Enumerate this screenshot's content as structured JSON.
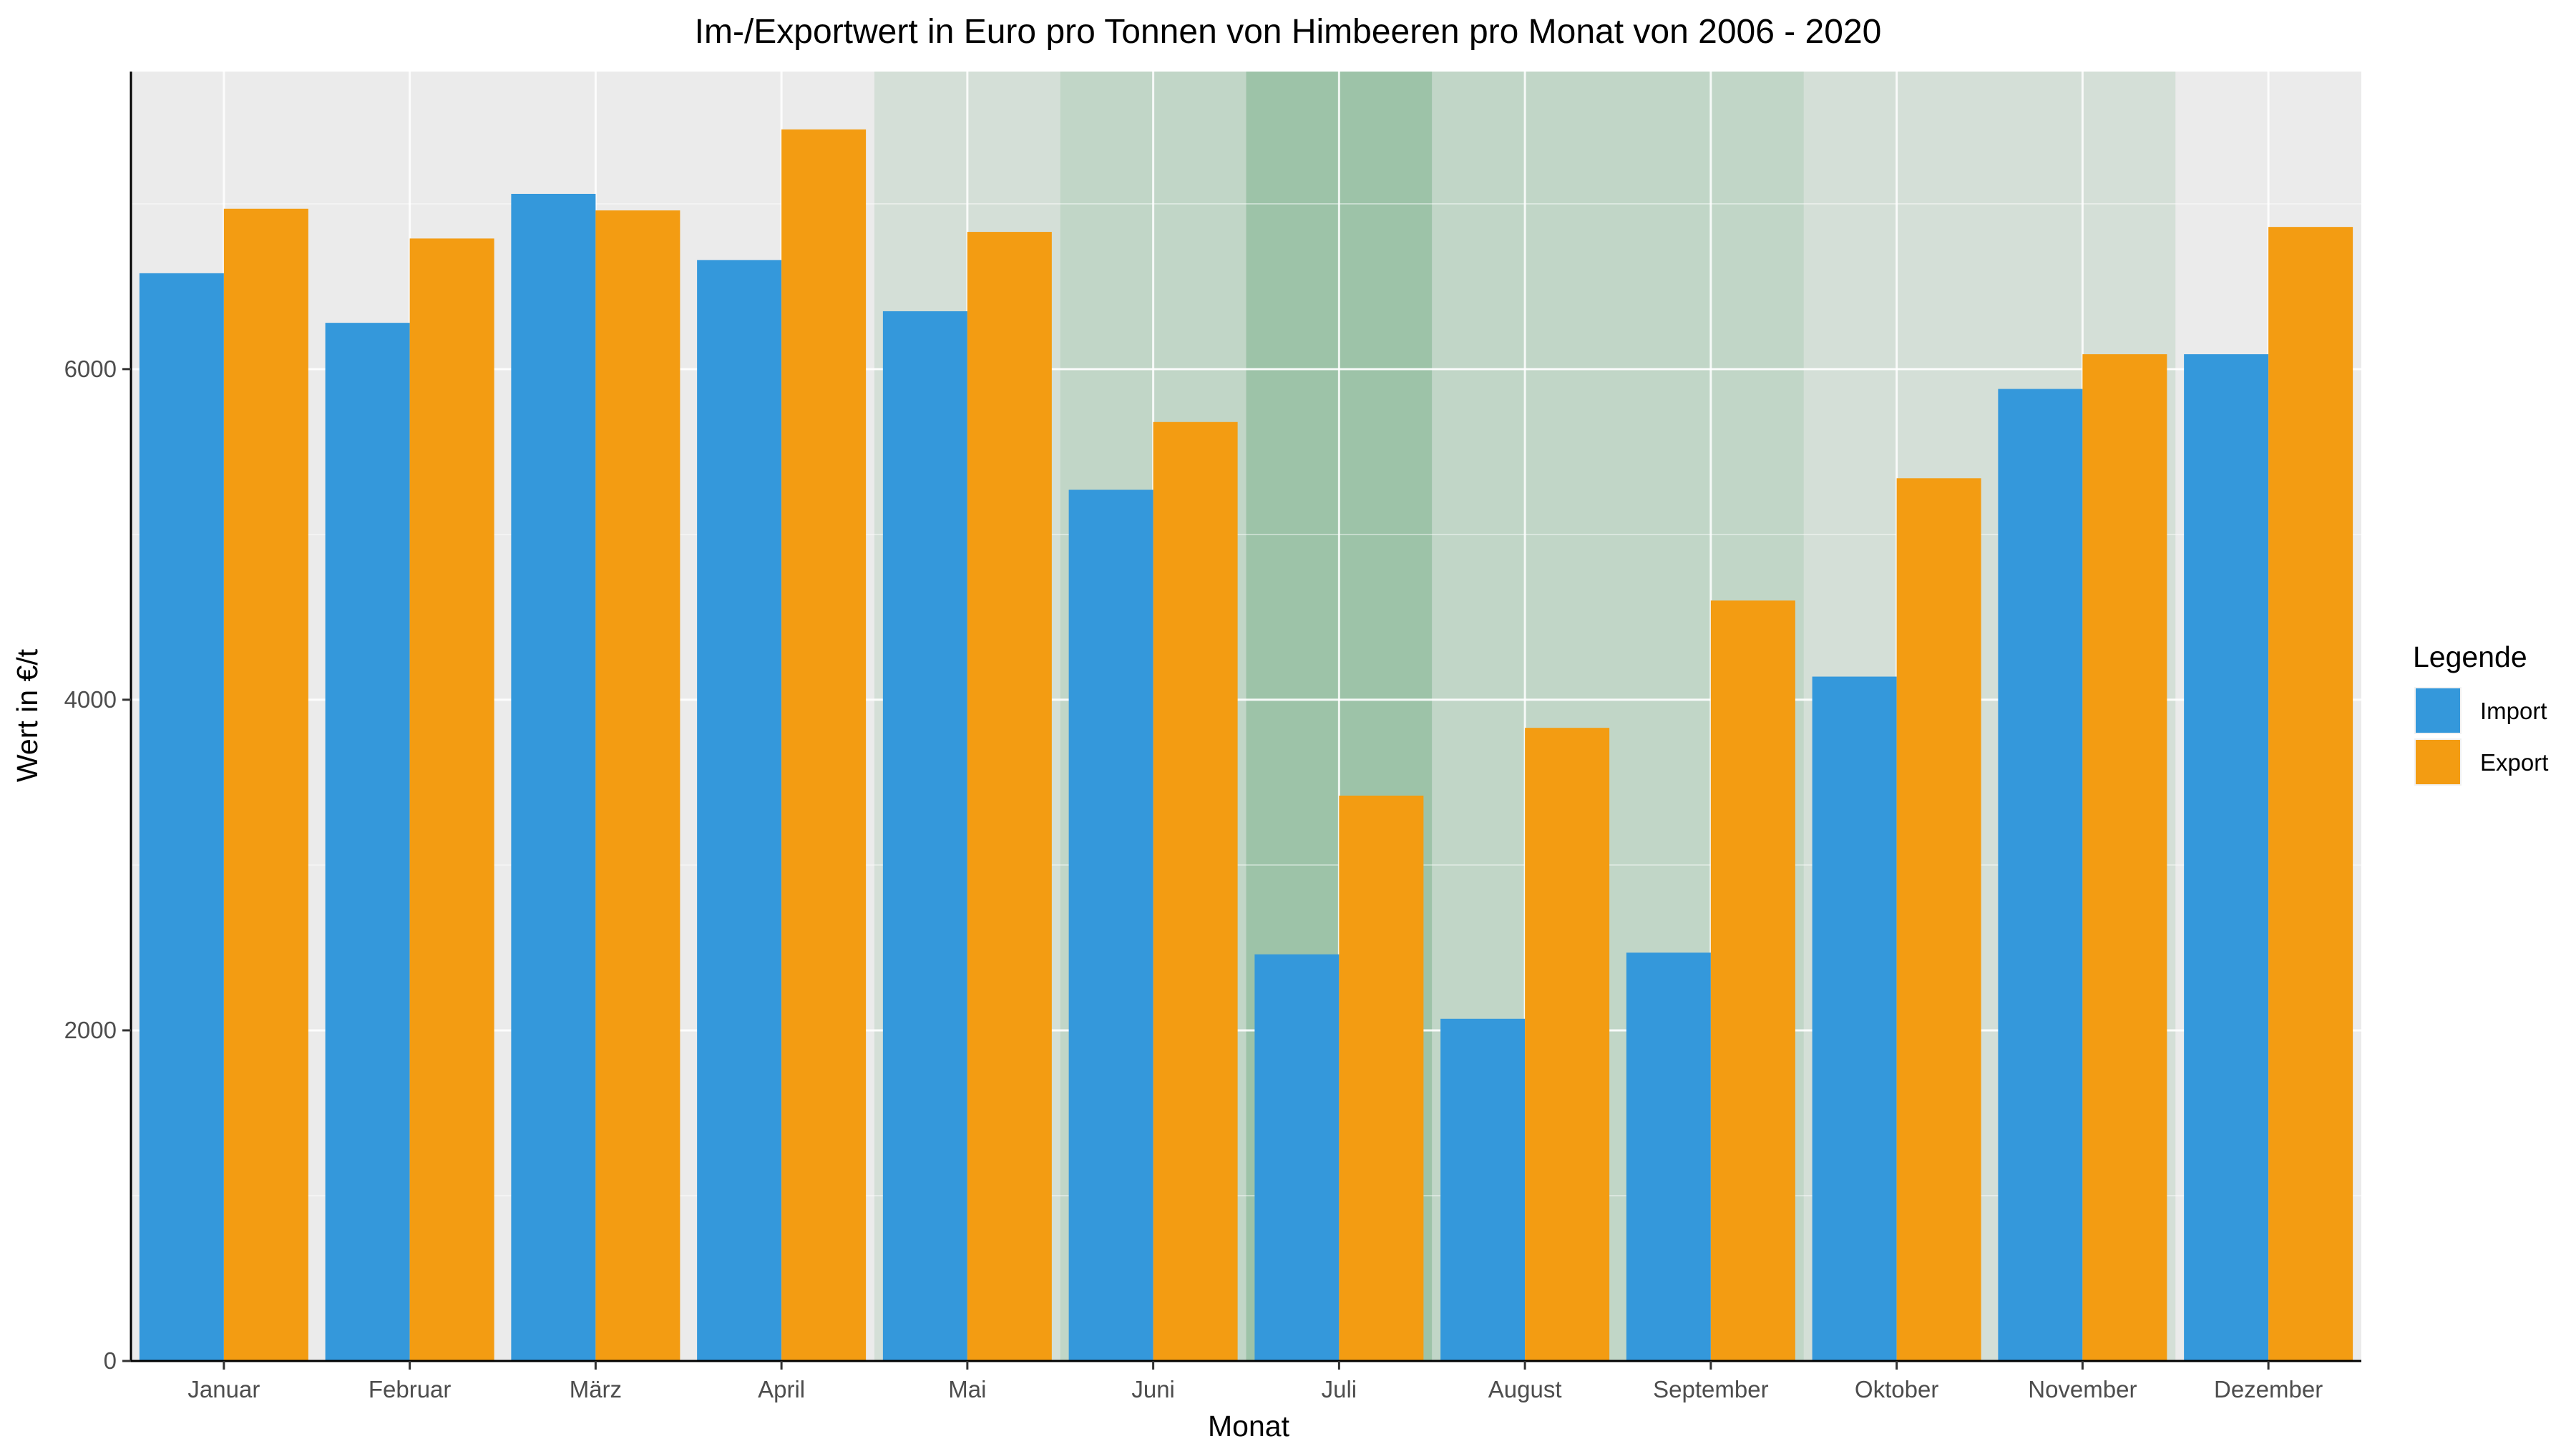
{
  "chart_data": {
    "type": "bar",
    "title": "Im-/Exportwert in Euro pro Tonnen von Himbeeren pro Monat von 2006 - 2020",
    "xlabel": "Monat",
    "ylabel": "Wert in €/t",
    "ylim": [
      0,
      7800
    ],
    "yticks": [
      0,
      2000,
      4000,
      6000
    ],
    "grid": true,
    "legend_position": "right",
    "categories": [
      "Januar",
      "Februar",
      "März",
      "April",
      "Mai",
      "Juni",
      "Juli",
      "August",
      "September",
      "Oktober",
      "November",
      "Dezember"
    ],
    "series": [
      {
        "name": "Import",
        "color": "#3498db",
        "values": [
          6580,
          6280,
          7060,
          6660,
          6350,
          5270,
          2460,
          2070,
          2470,
          4140,
          5880,
          6090
        ]
      },
      {
        "name": "Export",
        "color": "#f39c12",
        "values": [
          6970,
          6790,
          6960,
          7450,
          6830,
          5680,
          3420,
          3830,
          4600,
          5340,
          6090,
          6860
        ]
      }
    ],
    "legend_title": "Legende",
    "background_color": "#ebebeb",
    "season_shading": {
      "color": "#8fbc9c",
      "bands": [
        {
          "category": "Mai",
          "opacity": 0.25
        },
        {
          "category": "Juni",
          "opacity": 0.45
        },
        {
          "category": "Juli",
          "opacity": 0.85
        },
        {
          "category": "August",
          "opacity": 0.45
        },
        {
          "category": "September",
          "opacity": 0.45
        },
        {
          "category": "Oktober",
          "opacity": 0.25
        },
        {
          "category": "November",
          "opacity": 0.25
        }
      ]
    }
  }
}
